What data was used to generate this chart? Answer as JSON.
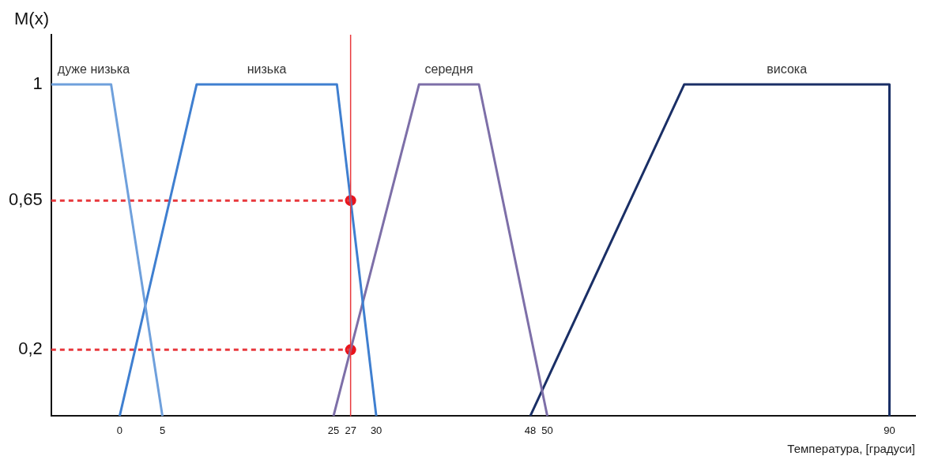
{
  "chart_data": {
    "type": "line",
    "ylabel": "M(x)",
    "xlabel": "Температура, [градуси]",
    "xlim": [
      -8,
      93
    ],
    "xticks": [
      0,
      5,
      25,
      27,
      30,
      48,
      50,
      90
    ],
    "ylim": [
      0,
      1.15
    ],
    "yticks": [
      {
        "value": 0.2,
        "label": "0,2"
      },
      {
        "value": 0.65,
        "label": "0,65"
      },
      1
    ],
    "grid": false,
    "legend": false,
    "series": [
      {
        "name": "дуже низька",
        "color": "#6fa0dc",
        "x": [
          -8,
          -1,
          5
        ],
        "values": [
          1,
          1,
          0
        ]
      },
      {
        "name": "низька",
        "color": "#3f7fd0",
        "x": [
          0,
          9,
          25.4,
          30
        ],
        "values": [
          0,
          1,
          1,
          0
        ]
      },
      {
        "name": "середня",
        "color": "#7d6fa8",
        "x": [
          25,
          35,
          42,
          50
        ],
        "values": [
          0,
          1,
          1,
          0
        ]
      },
      {
        "name": "висока",
        "color": "#1a2f66",
        "x": [
          48,
          66,
          90,
          90
        ],
        "values": [
          0,
          1,
          1,
          0
        ]
      },
      {
        "type": "line",
        "color": "#e8383d",
        "line_style": "dashed",
        "x": [
          -8,
          27
        ],
        "values": [
          0.65,
          0.65
        ]
      },
      {
        "type": "line",
        "color": "#e8383d",
        "line_style": "dashed",
        "x": [
          -8,
          27
        ],
        "values": [
          0.2,
          0.2
        ]
      },
      {
        "type": "scatter",
        "color": "#e8141c",
        "marker": "circle",
        "x": [
          27,
          27
        ],
        "values": [
          0.65,
          0.2
        ]
      }
    ],
    "ref_lines": [
      {
        "axis": "x",
        "value": 27,
        "color": "#e8383d"
      }
    ]
  }
}
